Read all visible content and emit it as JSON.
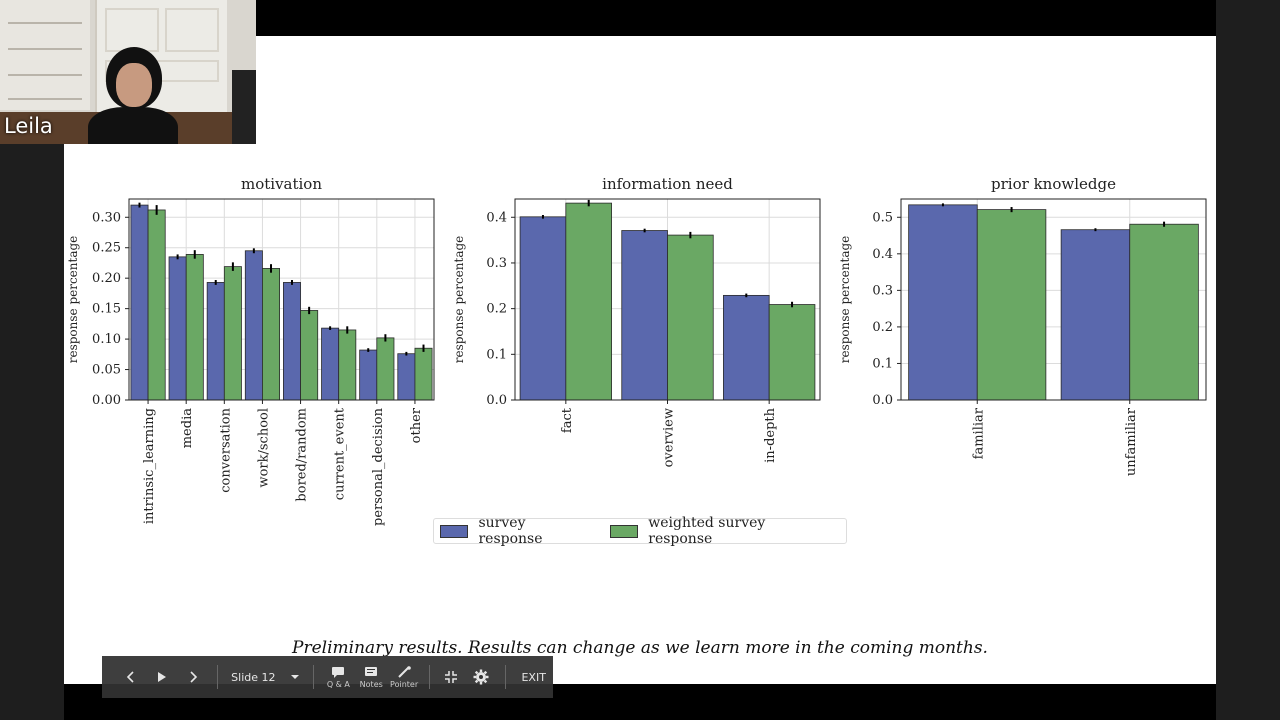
{
  "participant": {
    "name": "Leila"
  },
  "slide": {
    "footer_note": "Preliminary results. Results can change as we learn more in the coming months.",
    "legend": [
      {
        "label": "survey response",
        "color": "#5a68ad"
      },
      {
        "label": "weighted survey response",
        "color": "#6aa864"
      }
    ]
  },
  "toolbar": {
    "prev_icon": "chevron-left-icon",
    "play_icon": "play-icon",
    "next_icon": "chevron-right-icon",
    "slide_label": "Slide 12",
    "qa_label": "Q & A",
    "notes_label": "Notes",
    "pointer_label": "Pointer",
    "exit_label": "EXIT"
  },
  "chart_data": [
    {
      "type": "bar",
      "title": "motivation",
      "ylabel": "response percentage",
      "ylim": [
        0,
        0.33
      ],
      "yticks": [
        "0.00",
        "0.05",
        "0.10",
        "0.15",
        "0.20",
        "0.25",
        "0.30"
      ],
      "categories": [
        "intrinsic_learning",
        "media",
        "conversation",
        "work/school",
        "bored/random",
        "current_event",
        "personal_decision",
        "other"
      ],
      "series": [
        {
          "name": "survey response",
          "values": [
            0.32,
            0.235,
            0.193,
            0.245,
            0.193,
            0.118,
            0.082,
            0.076
          ],
          "err": [
            0.004,
            0.004,
            0.004,
            0.004,
            0.004,
            0.003,
            0.003,
            0.003
          ]
        },
        {
          "name": "weighted survey response",
          "values": [
            0.312,
            0.239,
            0.219,
            0.216,
            0.147,
            0.115,
            0.102,
            0.085
          ],
          "err": [
            0.008,
            0.007,
            0.007,
            0.007,
            0.006,
            0.006,
            0.006,
            0.006
          ]
        }
      ],
      "grid": true
    },
    {
      "type": "bar",
      "title": "information need",
      "ylabel": "response percentage",
      "ylim": [
        0,
        0.44
      ],
      "yticks": [
        "0.0",
        "0.1",
        "0.2",
        "0.3",
        "0.4"
      ],
      "categories": [
        "fact",
        "overview",
        "in-depth"
      ],
      "series": [
        {
          "name": "survey response",
          "values": [
            0.401,
            0.371,
            0.229
          ],
          "err": [
            0.004,
            0.004,
            0.004
          ]
        },
        {
          "name": "weighted survey response",
          "values": [
            0.431,
            0.361,
            0.209
          ],
          "err": [
            0.007,
            0.007,
            0.006
          ]
        }
      ],
      "grid": true
    },
    {
      "type": "bar",
      "title": "prior knowledge",
      "ylabel": "response percentage",
      "ylim": [
        0,
        0.55
      ],
      "yticks": [
        "0.0",
        "0.1",
        "0.2",
        "0.3",
        "0.4",
        "0.5"
      ],
      "categories": [
        "familiar",
        "unfamiliar"
      ],
      "series": [
        {
          "name": "survey response",
          "values": [
            0.534,
            0.466
          ],
          "err": [
            0.004,
            0.004
          ]
        },
        {
          "name": "weighted survey response",
          "values": [
            0.521,
            0.481
          ],
          "err": [
            0.007,
            0.007
          ]
        }
      ],
      "grid": true
    }
  ]
}
